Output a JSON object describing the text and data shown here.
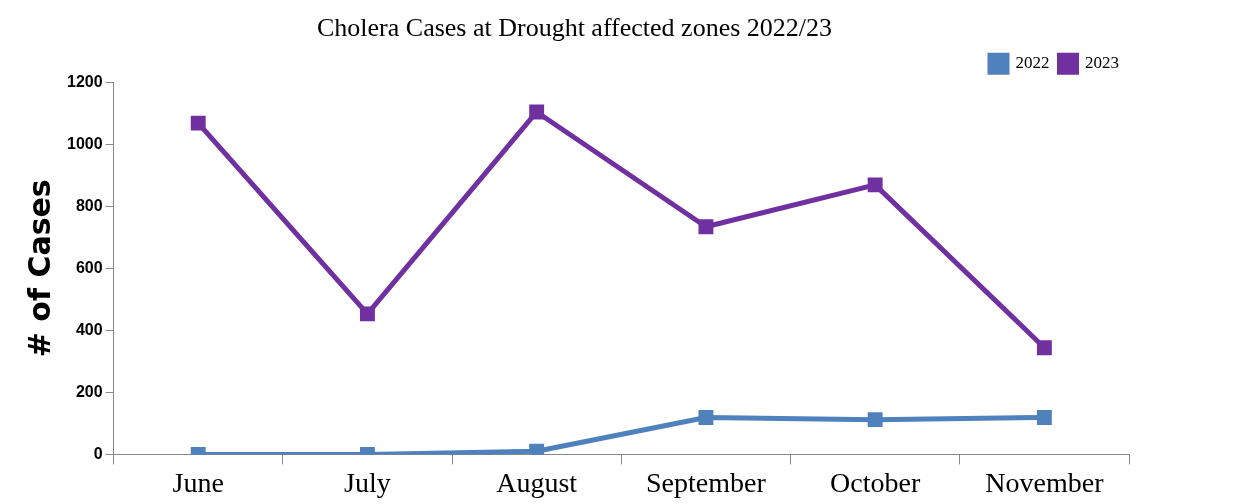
{
  "chart_data": {
    "type": "line",
    "title": "Cholera Cases at Drought affected zones 2022/23",
    "ylabel": "# of Cases",
    "categories": [
      "June",
      "July",
      "August",
      "September",
      "October",
      "November"
    ],
    "series": [
      {
        "name": "2022",
        "color": "#4f81bd",
        "values": [
          0,
          0,
          10,
          119,
          112,
          119
        ]
      },
      {
        "name": "2023",
        "color": "#7030a0",
        "values": [
          1068,
          453,
          1104,
          734,
          869,
          344
        ]
      }
    ],
    "ylim": [
      0,
      1200
    ],
    "yticks": [
      0,
      200,
      400,
      600,
      800,
      1000,
      1200
    ],
    "grid": false,
    "legend": "top right",
    "marker": "square",
    "line_style": "solid"
  }
}
